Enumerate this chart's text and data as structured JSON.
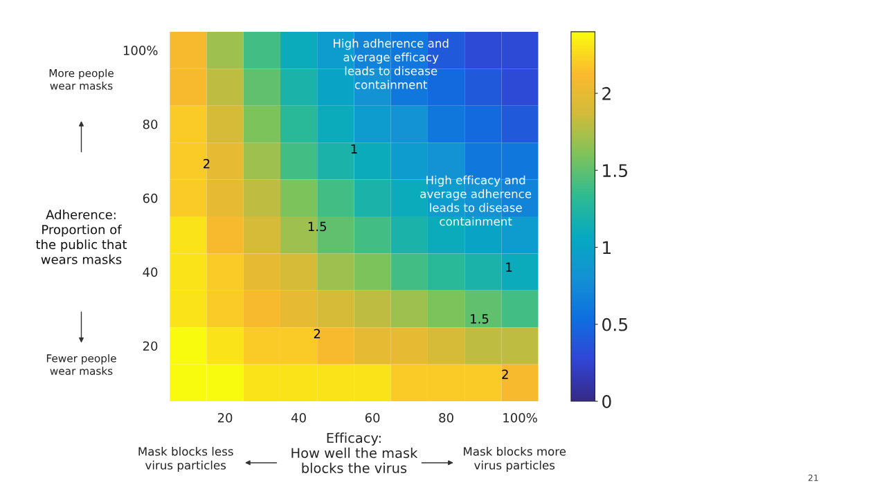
{
  "chart_data": {
    "type": "heatmap",
    "xlabel": "Efficacy:\nHow well the mask\nblocks the virus",
    "categories": [
      null,
      "20",
      null,
      "40",
      null,
      "60",
      null,
      "80",
      null,
      "100%"
    ],
    "y_categories": [
      "100%",
      null,
      "80",
      null,
      "60",
      null,
      "40",
      null,
      "20",
      null
    ],
    "cells": [
      [
        2.1,
        1.7,
        1.4,
        1.1,
        0.9,
        0.7,
        0.6,
        0.4,
        0.3,
        0.3
      ],
      [
        2.1,
        1.8,
        1.5,
        1.2,
        1.0,
        0.8,
        0.6,
        0.5,
        0.4,
        0.3
      ],
      [
        2.2,
        1.9,
        1.6,
        1.3,
        1.1,
        0.9,
        0.8,
        0.6,
        0.5,
        0.4
      ],
      [
        2.2,
        2.0,
        1.7,
        1.4,
        1.2,
        1.1,
        0.9,
        0.8,
        0.6,
        0.6
      ],
      [
        2.2,
        2.0,
        1.8,
        1.6,
        1.4,
        1.2,
        1.1,
        0.9,
        0.8,
        0.7
      ],
      [
        2.3,
        2.1,
        1.9,
        1.7,
        1.5,
        1.4,
        1.2,
        1.1,
        1.0,
        0.9
      ],
      [
        2.3,
        2.2,
        2.0,
        1.9,
        1.7,
        1.6,
        1.4,
        1.3,
        1.2,
        1.1
      ],
      [
        2.3,
        2.2,
        2.1,
        2.0,
        1.9,
        1.8,
        1.7,
        1.6,
        1.5,
        1.4
      ],
      [
        2.4,
        2.3,
        2.2,
        2.2,
        2.1,
        2.0,
        2.0,
        1.9,
        1.8,
        1.8
      ],
      [
        2.4,
        2.4,
        2.3,
        2.3,
        2.3,
        2.3,
        2.2,
        2.2,
        2.2,
        2.1
      ]
    ],
    "clim": [
      0,
      2.4
    ],
    "cticks": [
      0,
      0.5,
      1,
      1.5,
      2
    ],
    "annotations": [
      "High adherence and\naverage efficacy\nleads to disease\ncontainment",
      "High efficacy and\naverage adherence\nleads to disease\ncontainment",
      "More people\nwear masks",
      "Fewer people\nwear masks",
      "Mask blocks less\nvirus particles",
      "Mask blocks more\nvirus particles",
      "21",
      "Adherence:\nProportion of\nthe public that\nwears masks",
      "2",
      "2",
      "2",
      "1.5",
      "1.5",
      "1",
      "1"
    ]
  }
}
